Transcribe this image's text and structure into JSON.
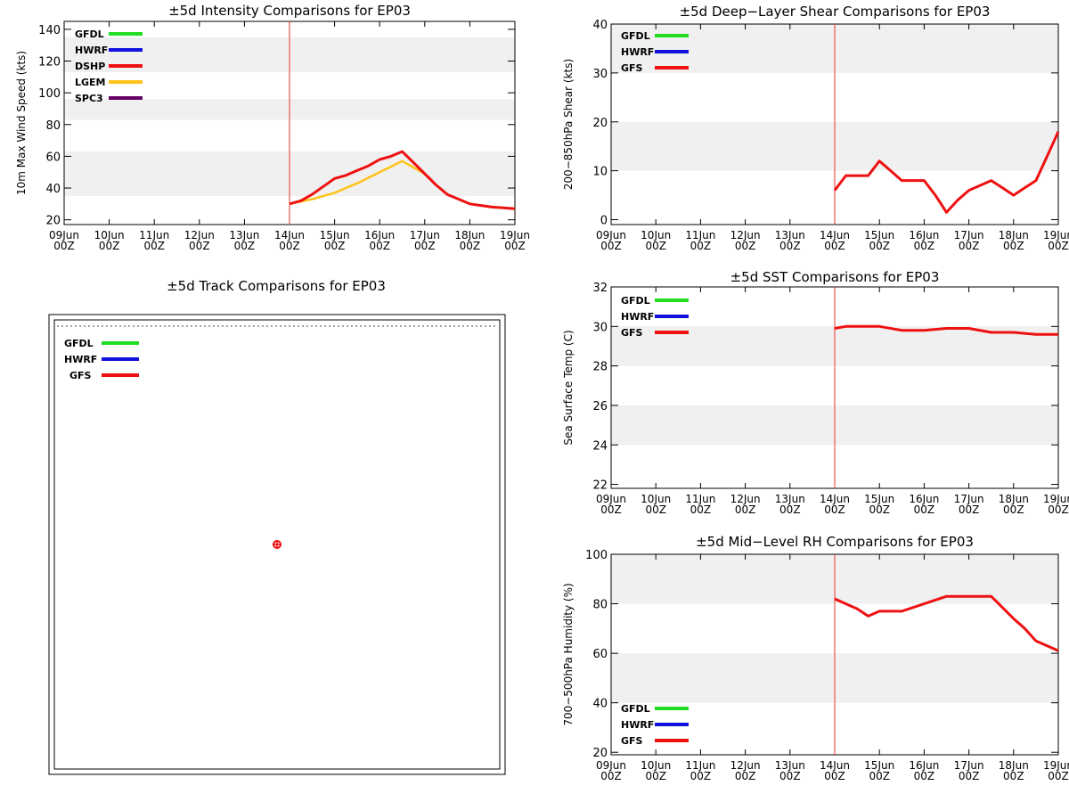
{
  "x_ticks": [
    {
      "day": "09Jun",
      "hour": "00Z"
    },
    {
      "day": "10Jun",
      "hour": "00Z"
    },
    {
      "day": "11Jun",
      "hour": "00Z"
    },
    {
      "day": "12Jun",
      "hour": "00Z"
    },
    {
      "day": "13Jun",
      "hour": "00Z"
    },
    {
      "day": "14Jun",
      "hour": "00Z"
    },
    {
      "day": "15Jun",
      "hour": "00Z"
    },
    {
      "day": "16Jun",
      "hour": "00Z"
    },
    {
      "day": "17Jun",
      "hour": "00Z"
    },
    {
      "day": "18Jun",
      "hour": "00Z"
    },
    {
      "day": "19Jun",
      "hour": "00Z"
    }
  ],
  "colors": {
    "GFDL": "#22dd22",
    "HWRF": "#1111dd",
    "DSHP": "#ee1111",
    "LGEM": "#ffc21a",
    "SPC3": "#660066",
    "GFS": "#ee1111",
    "band": "#f0f0f0",
    "init_line": "#ee3333"
  },
  "chart_data": [
    {
      "id": "intensity",
      "type": "line",
      "title": "±5d Intensity Comparisons for EP03",
      "xlabel": "",
      "ylabel": "10m Max Wind Speed (kts)",
      "xlim": [
        0,
        10
      ],
      "ylim": [
        17,
        145
      ],
      "yticks": [
        20,
        40,
        60,
        80,
        100,
        120,
        140
      ],
      "bands": [
        [
          35,
          63
        ],
        [
          83,
          96
        ],
        [
          113,
          135
        ]
      ],
      "init_x": 5,
      "legend": [
        "GFDL",
        "HWRF",
        "DSHP",
        "LGEM",
        "SPC3"
      ],
      "series": [
        {
          "name": "DSHP",
          "x": [
            5,
            5.25,
            5.5,
            5.75,
            6,
            6.25,
            6.5,
            6.75,
            7,
            7.25,
            7.5,
            7.75,
            8,
            8.25,
            8.5,
            8.75,
            9,
            9.25,
            9.5,
            9.75,
            10
          ],
          "y": [
            30,
            32,
            36,
            41,
            46,
            48,
            51,
            54,
            58,
            60,
            63,
            56,
            49,
            42,
            36,
            33,
            30,
            29,
            28,
            27.5,
            27
          ]
        },
        {
          "name": "LGEM",
          "x": [
            5,
            5.5,
            6,
            6.5,
            7,
            7.5,
            8
          ],
          "y": [
            30,
            33,
            37,
            43,
            50,
            57,
            49
          ]
        }
      ]
    },
    {
      "id": "shear",
      "type": "line",
      "title": "±5d Deep−Layer Shear Comparisons for EP03",
      "xlabel": "",
      "ylabel": "200−850hPa Shear (kts)",
      "xlim": [
        0,
        10
      ],
      "ylim": [
        -1,
        40
      ],
      "yticks": [
        0,
        10,
        20,
        30,
        40
      ],
      "bands": [
        [
          10,
          20
        ],
        [
          30,
          40
        ]
      ],
      "init_x": 5,
      "legend": [
        "GFDL",
        "HWRF",
        "GFS"
      ],
      "series": [
        {
          "name": "GFS",
          "x": [
            5,
            5.25,
            5.5,
            5.75,
            6,
            6.25,
            6.5,
            6.75,
            7,
            7.25,
            7.5,
            7.75,
            8,
            8.25,
            8.5,
            8.75,
            9,
            9.25,
            9.5,
            9.75,
            10
          ],
          "y": [
            6,
            9,
            9,
            9,
            12,
            10,
            8,
            8,
            8,
            5,
            1.5,
            4,
            6,
            7,
            8,
            6.5,
            5,
            6.5,
            8,
            13,
            18
          ]
        }
      ]
    },
    {
      "id": "track",
      "type": "scatter",
      "title": "±5d Track Comparisons for EP03",
      "legend": [
        "GFDL",
        "HWRF",
        "GFS"
      ],
      "points": [
        {
          "name": "GFS",
          "x": 0.5,
          "y": 0.5
        }
      ]
    },
    {
      "id": "sst",
      "type": "line",
      "title": "±5d SST Comparisons for EP03",
      "xlabel": "",
      "ylabel": "Sea Surface Temp (C)",
      "xlim": [
        0,
        10
      ],
      "ylim": [
        21.8,
        32
      ],
      "yticks": [
        22,
        24,
        26,
        28,
        30,
        32
      ],
      "bands": [
        [
          24,
          26
        ],
        [
          28,
          30
        ]
      ],
      "init_x": 5,
      "legend": [
        "GFDL",
        "HWRF",
        "GFS"
      ],
      "series": [
        {
          "name": "GFS",
          "x": [
            5,
            5.25,
            5.5,
            6,
            6.5,
            7,
            7.5,
            8,
            8.5,
            9,
            9.5,
            10
          ],
          "y": [
            29.9,
            30,
            30,
            30,
            29.8,
            29.8,
            29.9,
            29.9,
            29.7,
            29.7,
            29.6,
            29.6
          ]
        }
      ]
    },
    {
      "id": "rh",
      "type": "line",
      "title": "±5d Mid−Level RH Comparisons for EP03",
      "xlabel": "",
      "ylabel": "700−500hPa Humidity (%)",
      "xlim": [
        0,
        10
      ],
      "ylim": [
        19,
        100
      ],
      "yticks": [
        20,
        40,
        60,
        80,
        100
      ],
      "bands": [
        [
          40,
          60
        ],
        [
          80,
          100
        ]
      ],
      "init_x": 5,
      "legend": [
        "GFDL",
        "HWRF",
        "GFS"
      ],
      "series": [
        {
          "name": "GFS",
          "x": [
            5,
            5.25,
            5.5,
            5.75,
            6,
            6.5,
            7,
            7.5,
            8,
            8.5,
            9,
            9.25,
            9.5,
            9.75,
            10
          ],
          "y": [
            82,
            80,
            78,
            75,
            77,
            77,
            80,
            83,
            83,
            83,
            74,
            70,
            65,
            63,
            61
          ]
        }
      ]
    }
  ]
}
